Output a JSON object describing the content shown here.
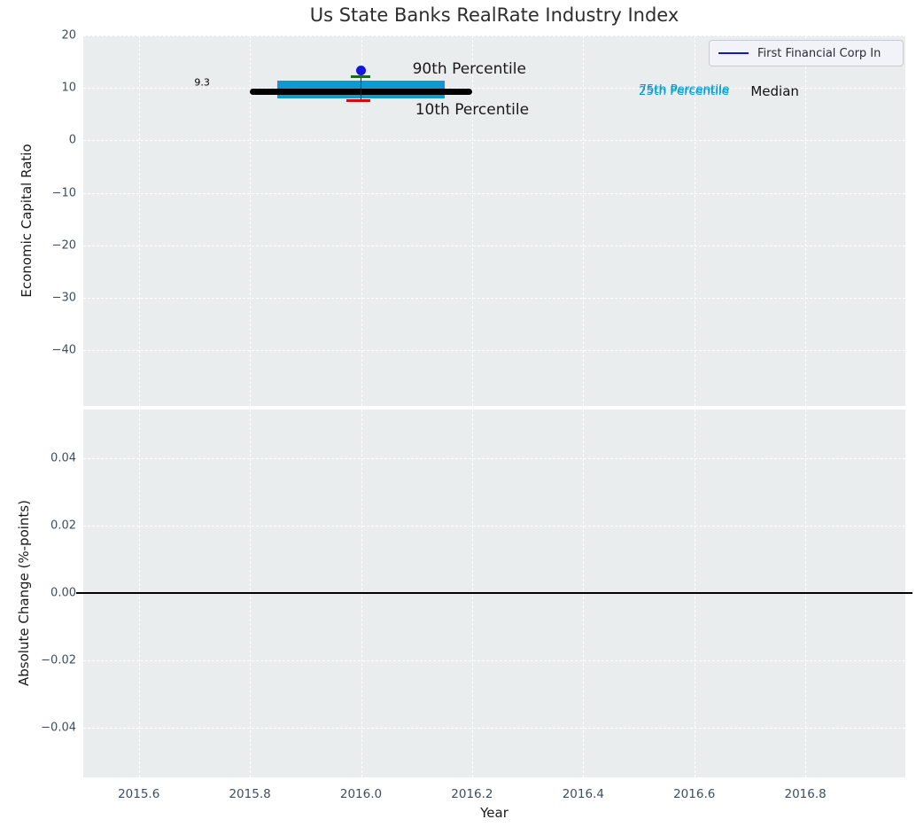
{
  "title": "Us State Banks RealRate Industry Index",
  "legend": {
    "label": "First Financial Corp In",
    "line_color": "#1414dd"
  },
  "colors": {
    "figure_bg": "#ffffff",
    "axes_bg": "#e9edee",
    "grid": "#ffffff",
    "box": "#0b9bd0",
    "company": "#1414dd",
    "p90": "#007d00",
    "p10": "#e60000",
    "median": "#000000",
    "whisker": "#222222",
    "tick_label": "#3e4e5e",
    "title_color": "#2d2d2d"
  },
  "chart_data": {
    "type": "box-timeseries",
    "title": "Us State Banks RealRate Industry Index",
    "xlabel": "Year",
    "grid": "white-dashed",
    "legend_position": "upper right",
    "xlim": [
      2015.5,
      2016.98
    ],
    "xticks": [
      {
        "v": 2015.6,
        "label": "2015.6"
      },
      {
        "v": 2015.8,
        "label": "2015.8"
      },
      {
        "v": 2016.0,
        "label": "2016.0"
      },
      {
        "v": 2016.2,
        "label": "2016.2"
      },
      {
        "v": 2016.4,
        "label": "2016.4"
      },
      {
        "v": 2016.6,
        "label": "2016.6"
      },
      {
        "v": 2016.8,
        "label": "2016.8"
      }
    ],
    "panels": [
      {
        "name": "economic-capital-ratio",
        "ylabel": "Economic Capital Ratio",
        "ylim": [
          -50.6,
          20
        ],
        "yticks": [
          {
            "v": 20,
            "label": "20"
          },
          {
            "v": 10,
            "label": "10"
          },
          {
            "v": 0,
            "label": "0"
          },
          {
            "v": -10,
            "label": "−10"
          },
          {
            "v": -20,
            "label": "−20"
          },
          {
            "v": -30,
            "label": "−30"
          },
          {
            "v": -40,
            "label": "−40"
          }
        ],
        "year": 2016.0,
        "median": 9.3,
        "iqr_box": {
          "x_start": 2015.85,
          "x_end": 2016.15,
          "p25": 8.0,
          "p75": 11.4
        },
        "median_line": {
          "x_start": 2015.8,
          "x_end": 2016.2,
          "value": 9.3
        },
        "company_point": {
          "x": 2016.0,
          "value": 13.3
        },
        "p90_tick": {
          "x_start": 2015.982,
          "x_end": 2016.017,
          "value": 12.2
        },
        "p10_tick": {
          "x_start": 2015.974,
          "x_end": 2016.017,
          "value": 7.65
        },
        "whisker": {
          "x": 2016.0,
          "y_top": 12.2,
          "y_bottom": 7.65
        },
        "annotations": [
          {
            "id": "median-value",
            "text": "9.3",
            "x": 2015.714,
            "y": 11.05,
            "size": 11,
            "color": "#000000"
          },
          {
            "id": "p90-label",
            "text": "90th Percentile",
            "x": 2016.195,
            "y": 13.66,
            "size": 17,
            "color": "#1a1a1a"
          },
          {
            "id": "p10-label",
            "text": "10th Percentile",
            "x": 2016.2,
            "y": 5.87,
            "size": 17,
            "color": "#1a1a1a"
          },
          {
            "id": "p75-label",
            "text": "75th Percentile",
            "x": 2016.582,
            "y": 9.72,
            "size": 13.5,
            "color": "#0b9bd0"
          },
          {
            "id": "p25-label",
            "text": "25th Percentile",
            "x": 2016.581,
            "y": 9.43,
            "size": 13.5,
            "color": "#0b9bd0"
          },
          {
            "id": "median-label",
            "text": "Median",
            "x": 2016.745,
            "y": 9.35,
            "size": 15,
            "color": "#111111"
          }
        ]
      },
      {
        "name": "absolute-change",
        "ylabel": "Absolute Change (%-points)",
        "ylim": [
          -0.0548,
          0.0546
        ],
        "yticks": [
          {
            "v": 0.04,
            "label": "0.04"
          },
          {
            "v": 0.02,
            "label": "0.02"
          },
          {
            "v": 0.0,
            "label": "0.00"
          },
          {
            "v": -0.02,
            "label": "−0.02"
          },
          {
            "v": -0.04,
            "label": "−0.04"
          }
        ],
        "zero_line": {
          "value": 0.0,
          "color": "#000000"
        }
      }
    ]
  }
}
